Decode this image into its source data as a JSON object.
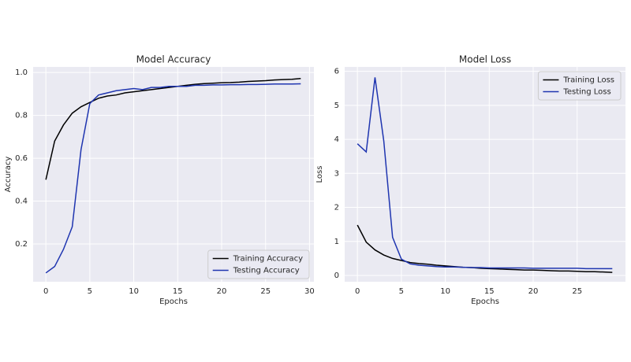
{
  "chart_data": [
    {
      "type": "line",
      "title": "Model Accuracy",
      "x_label": "Epochs",
      "y_label": "Accuracy",
      "x": [
        0,
        1,
        2,
        3,
        4,
        5,
        6,
        7,
        8,
        9,
        10,
        11,
        12,
        13,
        14,
        15,
        16,
        17,
        18,
        19,
        20,
        21,
        22,
        23,
        24,
        25,
        26,
        27,
        28,
        29
      ],
      "series": [
        {
          "name": "Training Accuracy",
          "color": "#000000",
          "values": [
            0.5,
            0.68,
            0.755,
            0.81,
            0.84,
            0.86,
            0.88,
            0.89,
            0.895,
            0.905,
            0.91,
            0.915,
            0.92,
            0.925,
            0.93,
            0.935,
            0.94,
            0.945,
            0.948,
            0.95,
            0.952,
            0.953,
            0.955,
            0.958,
            0.96,
            0.962,
            0.965,
            0.967,
            0.968,
            0.972
          ]
        },
        {
          "name": "Testing Accuracy",
          "color": "#1f35b0",
          "values": [
            0.065,
            0.095,
            0.175,
            0.28,
            0.64,
            0.855,
            0.895,
            0.905,
            0.915,
            0.92,
            0.925,
            0.92,
            0.93,
            0.93,
            0.935,
            0.935,
            0.935,
            0.94,
            0.94,
            0.942,
            0.942,
            0.943,
            0.943,
            0.944,
            0.944,
            0.945,
            0.946,
            0.946,
            0.946,
            0.947
          ]
        }
      ],
      "xlim": [
        -1.45,
        30.5
      ],
      "xticks": [
        0,
        5,
        10,
        15,
        20,
        25,
        30
      ],
      "ylim": [
        0.024,
        1.026
      ],
      "yticks": [
        0.2,
        0.4,
        0.6,
        0.8,
        {
          "value": 1,
          "label": "1.0"
        }
      ],
      "grid": true,
      "legend": "lower right"
    },
    {
      "type": "line",
      "title": "Model Loss",
      "x_label": "Epochs",
      "y_label": "Loss",
      "x": [
        0,
        1,
        2,
        3,
        4,
        5,
        6,
        7,
        8,
        9,
        10,
        11,
        12,
        13,
        14,
        15,
        16,
        17,
        18,
        19,
        20,
        21,
        22,
        23,
        24,
        25,
        26,
        27,
        28,
        29
      ],
      "series": [
        {
          "name": "Training Loss",
          "color": "#000000",
          "values": [
            1.48,
            0.98,
            0.75,
            0.6,
            0.5,
            0.44,
            0.38,
            0.35,
            0.33,
            0.3,
            0.28,
            0.26,
            0.24,
            0.23,
            0.21,
            0.2,
            0.19,
            0.18,
            0.17,
            0.16,
            0.16,
            0.15,
            0.14,
            0.13,
            0.13,
            0.12,
            0.11,
            0.11,
            0.1,
            0.09
          ]
        },
        {
          "name": "Testing Loss",
          "color": "#1f35b0",
          "values": [
            3.87,
            3.63,
            5.82,
            3.95,
            1.12,
            0.48,
            0.34,
            0.3,
            0.28,
            0.26,
            0.25,
            0.25,
            0.24,
            0.23,
            0.23,
            0.22,
            0.22,
            0.22,
            0.22,
            0.22,
            0.21,
            0.21,
            0.21,
            0.21,
            0.21,
            0.21,
            0.2,
            0.2,
            0.2,
            0.2
          ]
        }
      ],
      "xlim": [
        -1.45,
        30.5
      ],
      "xticks": [
        0,
        5,
        10,
        15,
        20,
        25
      ],
      "ylim": [
        -0.185,
        6.13
      ],
      "yticks": [
        0,
        1,
        2,
        3,
        4,
        5,
        6
      ],
      "grid": true,
      "legend": "upper right"
    }
  ]
}
